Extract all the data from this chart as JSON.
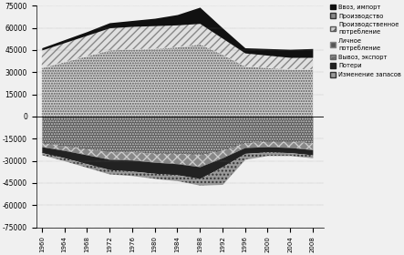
{
  "years": [
    1960,
    1964,
    1968,
    1972,
    1976,
    1980,
    1984,
    1988,
    1992,
    1996,
    2000,
    2004,
    2008
  ],
  "production": [
    33000,
    37000,
    41000,
    45000,
    45500,
    46000,
    47000,
    49000,
    42000,
    34000,
    33000,
    32000,
    32000
  ],
  "prod_consumption": [
    12000,
    13000,
    14000,
    15000,
    15500,
    15500,
    15000,
    14000,
    11000,
    9000,
    8500,
    8000,
    8000
  ],
  "import": [
    1500,
    2000,
    2500,
    3500,
    4000,
    5000,
    7000,
    11000,
    7000,
    3500,
    4500,
    5500,
    6000
  ],
  "personal_consumption": [
    -18000,
    -20000,
    -22000,
    -24000,
    -24000,
    -25000,
    -25000,
    -26000,
    -23000,
    -18000,
    -17000,
    -17000,
    -18000
  ],
  "export": [
    -2500,
    -3000,
    -4000,
    -5000,
    -5500,
    -6000,
    -7000,
    -8000,
    -5000,
    -3000,
    -3500,
    -4000,
    -4500
  ],
  "losses": [
    -4000,
    -5000,
    -6000,
    -7000,
    -7500,
    -7500,
    -7500,
    -8000,
    -6000,
    -4000,
    -3500,
    -3500,
    -3500
  ],
  "stock_change": [
    -1500,
    -2000,
    -2500,
    -3000,
    -3000,
    -3500,
    -4000,
    -4500,
    -12000,
    -4000,
    -2500,
    -2000,
    -2000
  ],
  "ylim": [
    -75000,
    75000
  ],
  "yticks": [
    -75000,
    -60000,
    -45000,
    -30000,
    -15000,
    0,
    15000,
    30000,
    45000,
    60000,
    75000
  ],
  "background_color": "#f0f0f0",
  "grid_color": "#888888"
}
